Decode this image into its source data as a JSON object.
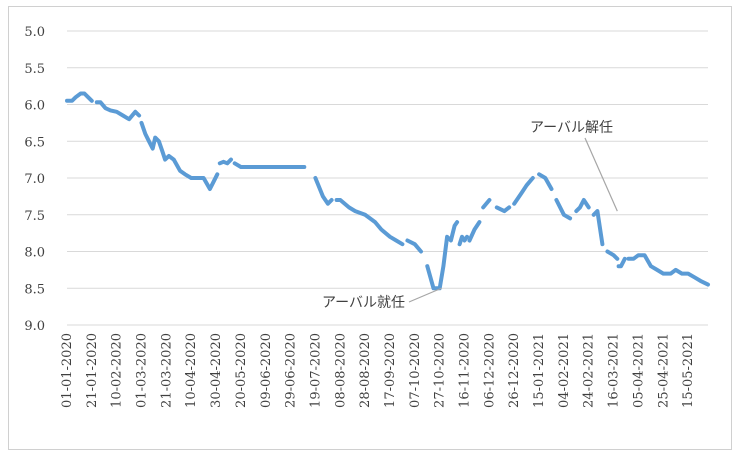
{
  "chart_data": {
    "type": "line",
    "title": "",
    "xlabel": "",
    "ylabel": "",
    "ylim": [
      5.0,
      9.0
    ],
    "y_inverted": true,
    "y_ticks": [
      "5.0",
      "5.5",
      "6.0",
      "6.5",
      "7.0",
      "7.5",
      "8.0",
      "8.5",
      "9.0"
    ],
    "x_tick_labels": [
      "01-01-2020",
      "21-01-2020",
      "10-02-2020",
      "01-03-2020",
      "21-03-2020",
      "10-04-2020",
      "30-04-2020",
      "20-05-2020",
      "09-06-2020",
      "29-06-2020",
      "19-07-2020",
      "08-08-2020",
      "28-08-2020",
      "17-09-2020",
      "07-10-2020",
      "27-10-2020",
      "16-11-2020",
      "06-12-2020",
      "26-12-2020",
      "15-01-2021",
      "04-02-2021",
      "24-02-2021",
      "16-03-2021",
      "05-04-2021",
      "25-04-2021",
      "15-05-2021"
    ],
    "grid": true,
    "line_color": "#5b9bd5",
    "series": [
      {
        "x": [
          "01-01-2020",
          "05-01-2020",
          "08-01-2020",
          "12-01-2020",
          "15-01-2020",
          "18-01-2020",
          "21-01-2020",
          "25-01-2020",
          "28-01-2020",
          "01-02-2020",
          "05-02-2020",
          "10-02-2020",
          "15-02-2020",
          "20-02-2020",
          "25-02-2020",
          "28-02-2020",
          "01-03-2020",
          "04-03-2020",
          "07-03-2020",
          "10-03-2020",
          "12-03-2020",
          "15-03-2020",
          "18-03-2020",
          "20-03-2020",
          "23-03-2020",
          "27-03-2020",
          "01-04-2020",
          "05-04-2020",
          "10-04-2020",
          "15-04-2020",
          "20-04-2020",
          "25-04-2020",
          "28-04-2020",
          "01-05-2020",
          "03-05-2020",
          "06-05-2020",
          "09-05-2020",
          "12-05-2020",
          "15-05-2020",
          "20-05-2020",
          "25-05-2020",
          "01-06-2020",
          "09-06-2020",
          "15-06-2020",
          "20-06-2020",
          "29-06-2020",
          "05-07-2020",
          "10-07-2020",
          "19-07-2020",
          "25-07-2020",
          "29-07-2020",
          "01-08-2020",
          "05-08-2020",
          "08-08-2020",
          "15-08-2020",
          "20-08-2020",
          "28-08-2020",
          "05-09-2020",
          "10-09-2020",
          "17-09-2020",
          "22-09-2020",
          "27-09-2020",
          "01-10-2020",
          "07-10-2020",
          "12-10-2020",
          "17-10-2020",
          "22-10-2020",
          "27-10-2020",
          "30-10-2020",
          "02-11-2020",
          "05-11-2020",
          "08-11-2020",
          "10-11-2020",
          "12-11-2020",
          "14-11-2020",
          "16-11-2020",
          "18-11-2020",
          "20-11-2020",
          "24-11-2020",
          "28-11-2020",
          "01-12-2020",
          "06-12-2020",
          "12-12-2020",
          "18-12-2020",
          "22-12-2020",
          "26-12-2020",
          "01-01-2021",
          "05-01-2021",
          "10-01-2021",
          "15-01-2021",
          "20-01-2021",
          "25-01-2021",
          "29-01-2021",
          "04-02-2021",
          "09-02-2021",
          "14-02-2021",
          "17-02-2021",
          "20-02-2021",
          "24-02-2021",
          "28-02-2021",
          "03-03-2021",
          "07-03-2021",
          "11-03-2021",
          "16-03-2021",
          "19-03-2021",
          "20-03-2021",
          "22-03-2021",
          "25-03-2021",
          "28-03-2021",
          "01-04-2021",
          "05-04-2021",
          "10-04-2021",
          "15-04-2021",
          "20-04-2021",
          "25-04-2021",
          "01-05-2021",
          "05-05-2021",
          "10-05-2021",
          "15-05-2021",
          "20-05-2021",
          "25-05-2021",
          "31-05-2021"
        ],
        "values": [
          5.95,
          5.95,
          5.9,
          5.85,
          5.85,
          5.9,
          5.95,
          5.97,
          5.97,
          6.05,
          6.08,
          6.1,
          6.15,
          6.2,
          6.1,
          6.15,
          6.25,
          6.4,
          6.5,
          6.6,
          6.45,
          6.5,
          6.65,
          6.75,
          6.7,
          6.75,
          6.9,
          6.95,
          7.0,
          7.0,
          7.0,
          7.15,
          7.05,
          6.95,
          6.8,
          6.78,
          6.8,
          6.75,
          6.8,
          6.85,
          6.85,
          6.85,
          6.85,
          6.85,
          6.85,
          6.85,
          6.85,
          6.85,
          7.0,
          7.25,
          7.35,
          7.3,
          7.3,
          7.3,
          7.4,
          7.45,
          7.5,
          7.6,
          7.7,
          7.8,
          7.85,
          7.9,
          7.85,
          7.9,
          8.0,
          8.2,
          8.5,
          8.5,
          8.2,
          7.8,
          7.85,
          7.65,
          7.6,
          7.9,
          7.8,
          7.85,
          7.8,
          7.85,
          7.7,
          7.6,
          7.4,
          7.3,
          7.4,
          7.45,
          7.4,
          7.35,
          7.2,
          7.1,
          7.0,
          6.95,
          7.0,
          7.15,
          7.3,
          7.5,
          7.55,
          7.45,
          7.4,
          7.3,
          7.4,
          7.5,
          7.45,
          7.9,
          8.0,
          8.05,
          8.1,
          8.2,
          8.2,
          8.1,
          8.1,
          8.1,
          8.05,
          8.05,
          8.2,
          8.25,
          8.3,
          8.3,
          8.25,
          8.3,
          8.3,
          8.35,
          8.4,
          8.45
        ],
        "gap_after": [
          6,
          15,
          33,
          37,
          47,
          51,
          61,
          64,
          72,
          76,
          79,
          81,
          84,
          88,
          91,
          94,
          98,
          101,
          104,
          107
        ]
      }
    ],
    "annotations": [
      {
        "text": "アーバル就任",
        "x": "30-10-2020",
        "y": 8.5
      },
      {
        "text": "アーバル解任",
        "x": "19-03-2021",
        "y": 7.45
      }
    ]
  }
}
